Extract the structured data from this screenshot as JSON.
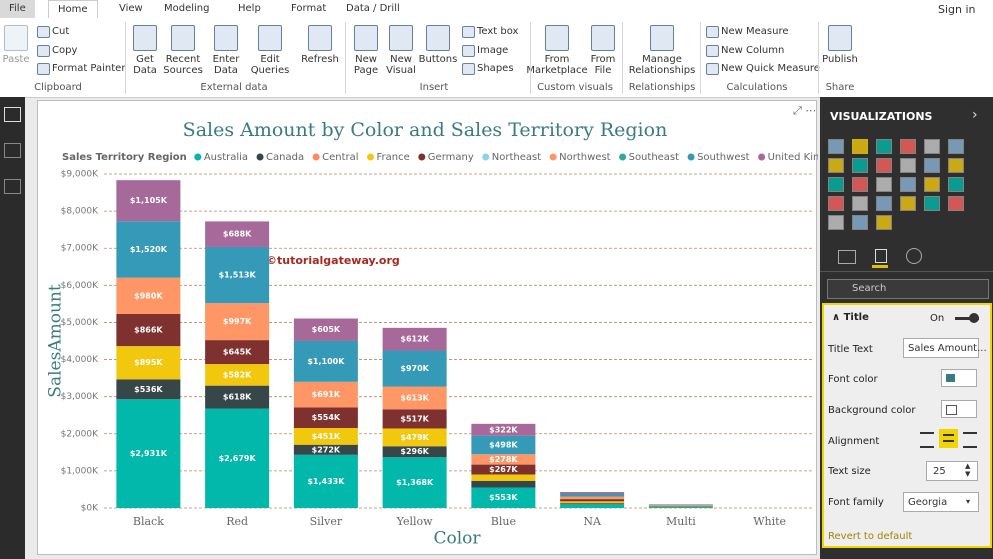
{
  "ribbon": {
    "tabs": [
      "File",
      "Home",
      "View",
      "Modeling",
      "Help",
      "Format",
      "Data / Drill"
    ],
    "sign_in": "Sign in",
    "buttons": [
      "Paste",
      "Cut",
      "Copy",
      "Format Painter",
      "Get Data",
      "Recent Sources",
      "Enter Data",
      "Edit Queries",
      "Refresh",
      "New Page",
      "New Visual",
      "Buttons",
      "Text box",
      "Image",
      "Shapes",
      "From Marketplace",
      "From File",
      "Manage Relationships",
      "New Measure",
      "New Column",
      "New Quick Measure",
      "Publish"
    ],
    "groups": [
      "Clipboard",
      "External data",
      "Insert",
      "Custom visuals",
      "Relationships",
      "Calculations",
      "Share"
    ]
  },
  "watermark": "©tutorialgateway.org",
  "panel": {
    "title": "VISUALIZATIONS",
    "search": "Search",
    "section": "Title",
    "toggle": "On",
    "rows": [
      "Title Text",
      "Font color",
      "Background color",
      "Alignment",
      "Text size",
      "Font family"
    ],
    "title_text": "Sales Amount...",
    "text_size": "25",
    "font_family": "Georgia",
    "revert": "Revert to default"
  },
  "chart_data": {
    "type": "stacked_bar",
    "title": "Sales Amount by Color and Sales Territory Region",
    "legend_title": "Sales Territory Region",
    "x_label": "Color",
    "y_label": "SalesAmount",
    "categories": [
      "Black",
      "Red",
      "Silver",
      "Yellow",
      "Blue",
      "NA",
      "Multi",
      "White"
    ],
    "ylim": [
      0,
      9000
    ],
    "yticks": [
      {
        "value": 0,
        "label": "$0K"
      },
      {
        "value": 1000,
        "label": "$1,000K"
      },
      {
        "value": 2000,
        "label": "$2,000K"
      },
      {
        "value": 3000,
        "label": "$3,000K"
      },
      {
        "value": 4000,
        "label": "$4,000K"
      },
      {
        "value": 5000,
        "label": "$5,000K"
      },
      {
        "value": 6000,
        "label": "$6,000K"
      },
      {
        "value": 7000,
        "label": "$7,000K"
      },
      {
        "value": 8000,
        "label": "$8,000K"
      },
      {
        "value": 9000,
        "label": "$9,000K"
      }
    ],
    "grid": true,
    "series": [
      {
        "name": "Australia",
        "color": "#01B8AA",
        "values": [
          2931,
          2679,
          1433,
          1368,
          553,
          100,
          30,
          0
        ],
        "value_labels": [
          "$2,931K",
          "$2,679K",
          "$1,433K",
          "$1,368K",
          "$553K",
          null,
          null,
          null
        ]
      },
      {
        "name": "Canada",
        "color": "#374649",
        "values": [
          536,
          618,
          272,
          296,
          180,
          30,
          10,
          0
        ],
        "value_labels": [
          "$536K",
          "$618K",
          "$272K",
          "$296K",
          null,
          null,
          null,
          null
        ]
      },
      {
        "name": "Central",
        "color": "#FD8A5E",
        "values": [
          null,
          null,
          null,
          null,
          null,
          null,
          null,
          null
        ],
        "value_labels": [
          null,
          null,
          null,
          null,
          null,
          null,
          null,
          null
        ]
      },
      {
        "name": "France",
        "color": "#F2C80F",
        "values": [
          895,
          582,
          451,
          479,
          170,
          50,
          10,
          0
        ],
        "value_labels": [
          "$895K",
          "$582K",
          "$451K",
          "$479K",
          null,
          null,
          null,
          null
        ]
      },
      {
        "name": "Germany",
        "color": "#7F312F",
        "values": [
          866,
          645,
          554,
          517,
          267,
          60,
          10,
          0
        ],
        "value_labels": [
          "$866K",
          "$645K",
          "$554K",
          "$517K",
          "$267K",
          null,
          null,
          null
        ]
      },
      {
        "name": "Northeast",
        "color": "#8AD4EB",
        "values": [
          null,
          null,
          null,
          null,
          null,
          null,
          null,
          null
        ],
        "value_labels": [
          null,
          null,
          null,
          null,
          null,
          null,
          null,
          null
        ]
      },
      {
        "name": "Northwest",
        "color": "#FE9666",
        "values": [
          980,
          997,
          691,
          613,
          278,
          70,
          15,
          0
        ],
        "value_labels": [
          "$980K",
          "$997K",
          "$691K",
          "$613K",
          "$278K",
          null,
          null,
          null
        ]
      },
      {
        "name": "Southeast",
        "color": "#2DA9A0",
        "values": [
          null,
          null,
          null,
          null,
          null,
          null,
          null,
          null
        ],
        "value_labels": [
          null,
          null,
          null,
          null,
          null,
          null,
          null,
          null
        ]
      },
      {
        "name": "Southwest",
        "color": "#3599B8",
        "values": [
          1520,
          1513,
          1100,
          970,
          498,
          80,
          15,
          0
        ],
        "value_labels": [
          "$1,520K",
          "$1,513K",
          "$1,100K",
          "$970K",
          "$498K",
          null,
          null,
          null
        ]
      },
      {
        "name": "United Kingdom",
        "color": "#A66999",
        "values": [
          1105,
          688,
          605,
          612,
          322,
          40,
          10,
          0
        ],
        "value_labels": [
          "$1,105K",
          "$688K",
          "$605K",
          "$612K",
          "$322K",
          null,
          null,
          null
        ]
      }
    ]
  }
}
